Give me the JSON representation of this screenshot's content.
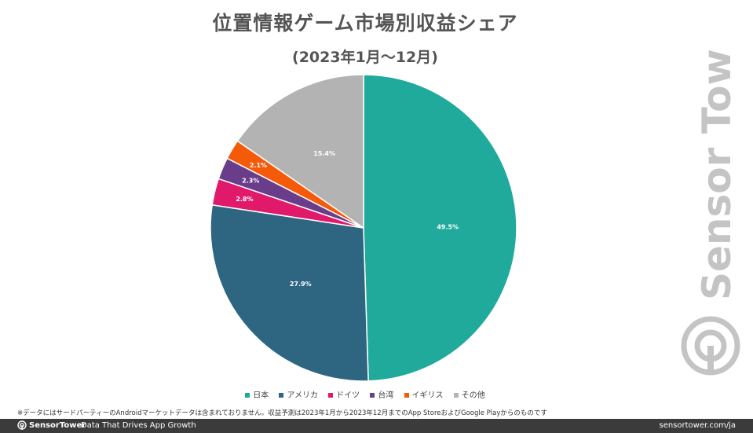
{
  "chart_data": {
    "type": "pie",
    "title": "位置情報ゲーム市場別収益シェア",
    "subtitle": "(2023年1月～12月)",
    "slices": [
      {
        "label": "日本",
        "value": 49.5,
        "display": "49.5%",
        "color": "#20aa9b"
      },
      {
        "label": "アメリカ",
        "value": 27.9,
        "display": "27.9%",
        "color": "#2e6682"
      },
      {
        "label": "ドイツ",
        "value": 2.8,
        "display": "2.8%",
        "color": "#e0196b"
      },
      {
        "label": "台湾",
        "value": 2.3,
        "display": "2.3%",
        "color": "#6a3d8a"
      },
      {
        "label": "イギリス",
        "value": 2.1,
        "display": "2.1%",
        "color": "#f55a08"
      },
      {
        "label": "その他",
        "value": 15.4,
        "display": "15.4%",
        "color": "#b3b3b3"
      }
    ],
    "legend_position": "bottom"
  },
  "footnote": "※データにはサードパーティーのAndroidマーケットデータは含まれておりません。収益予測は2023年1月から2023年12月までのApp StoreおよびGoogle Playからのものです",
  "watermark": "Sensor Tower",
  "footer": {
    "brand": "SensorTower",
    "tagline": "Data That Drives App Growth",
    "url": "sensortower.com/ja"
  }
}
